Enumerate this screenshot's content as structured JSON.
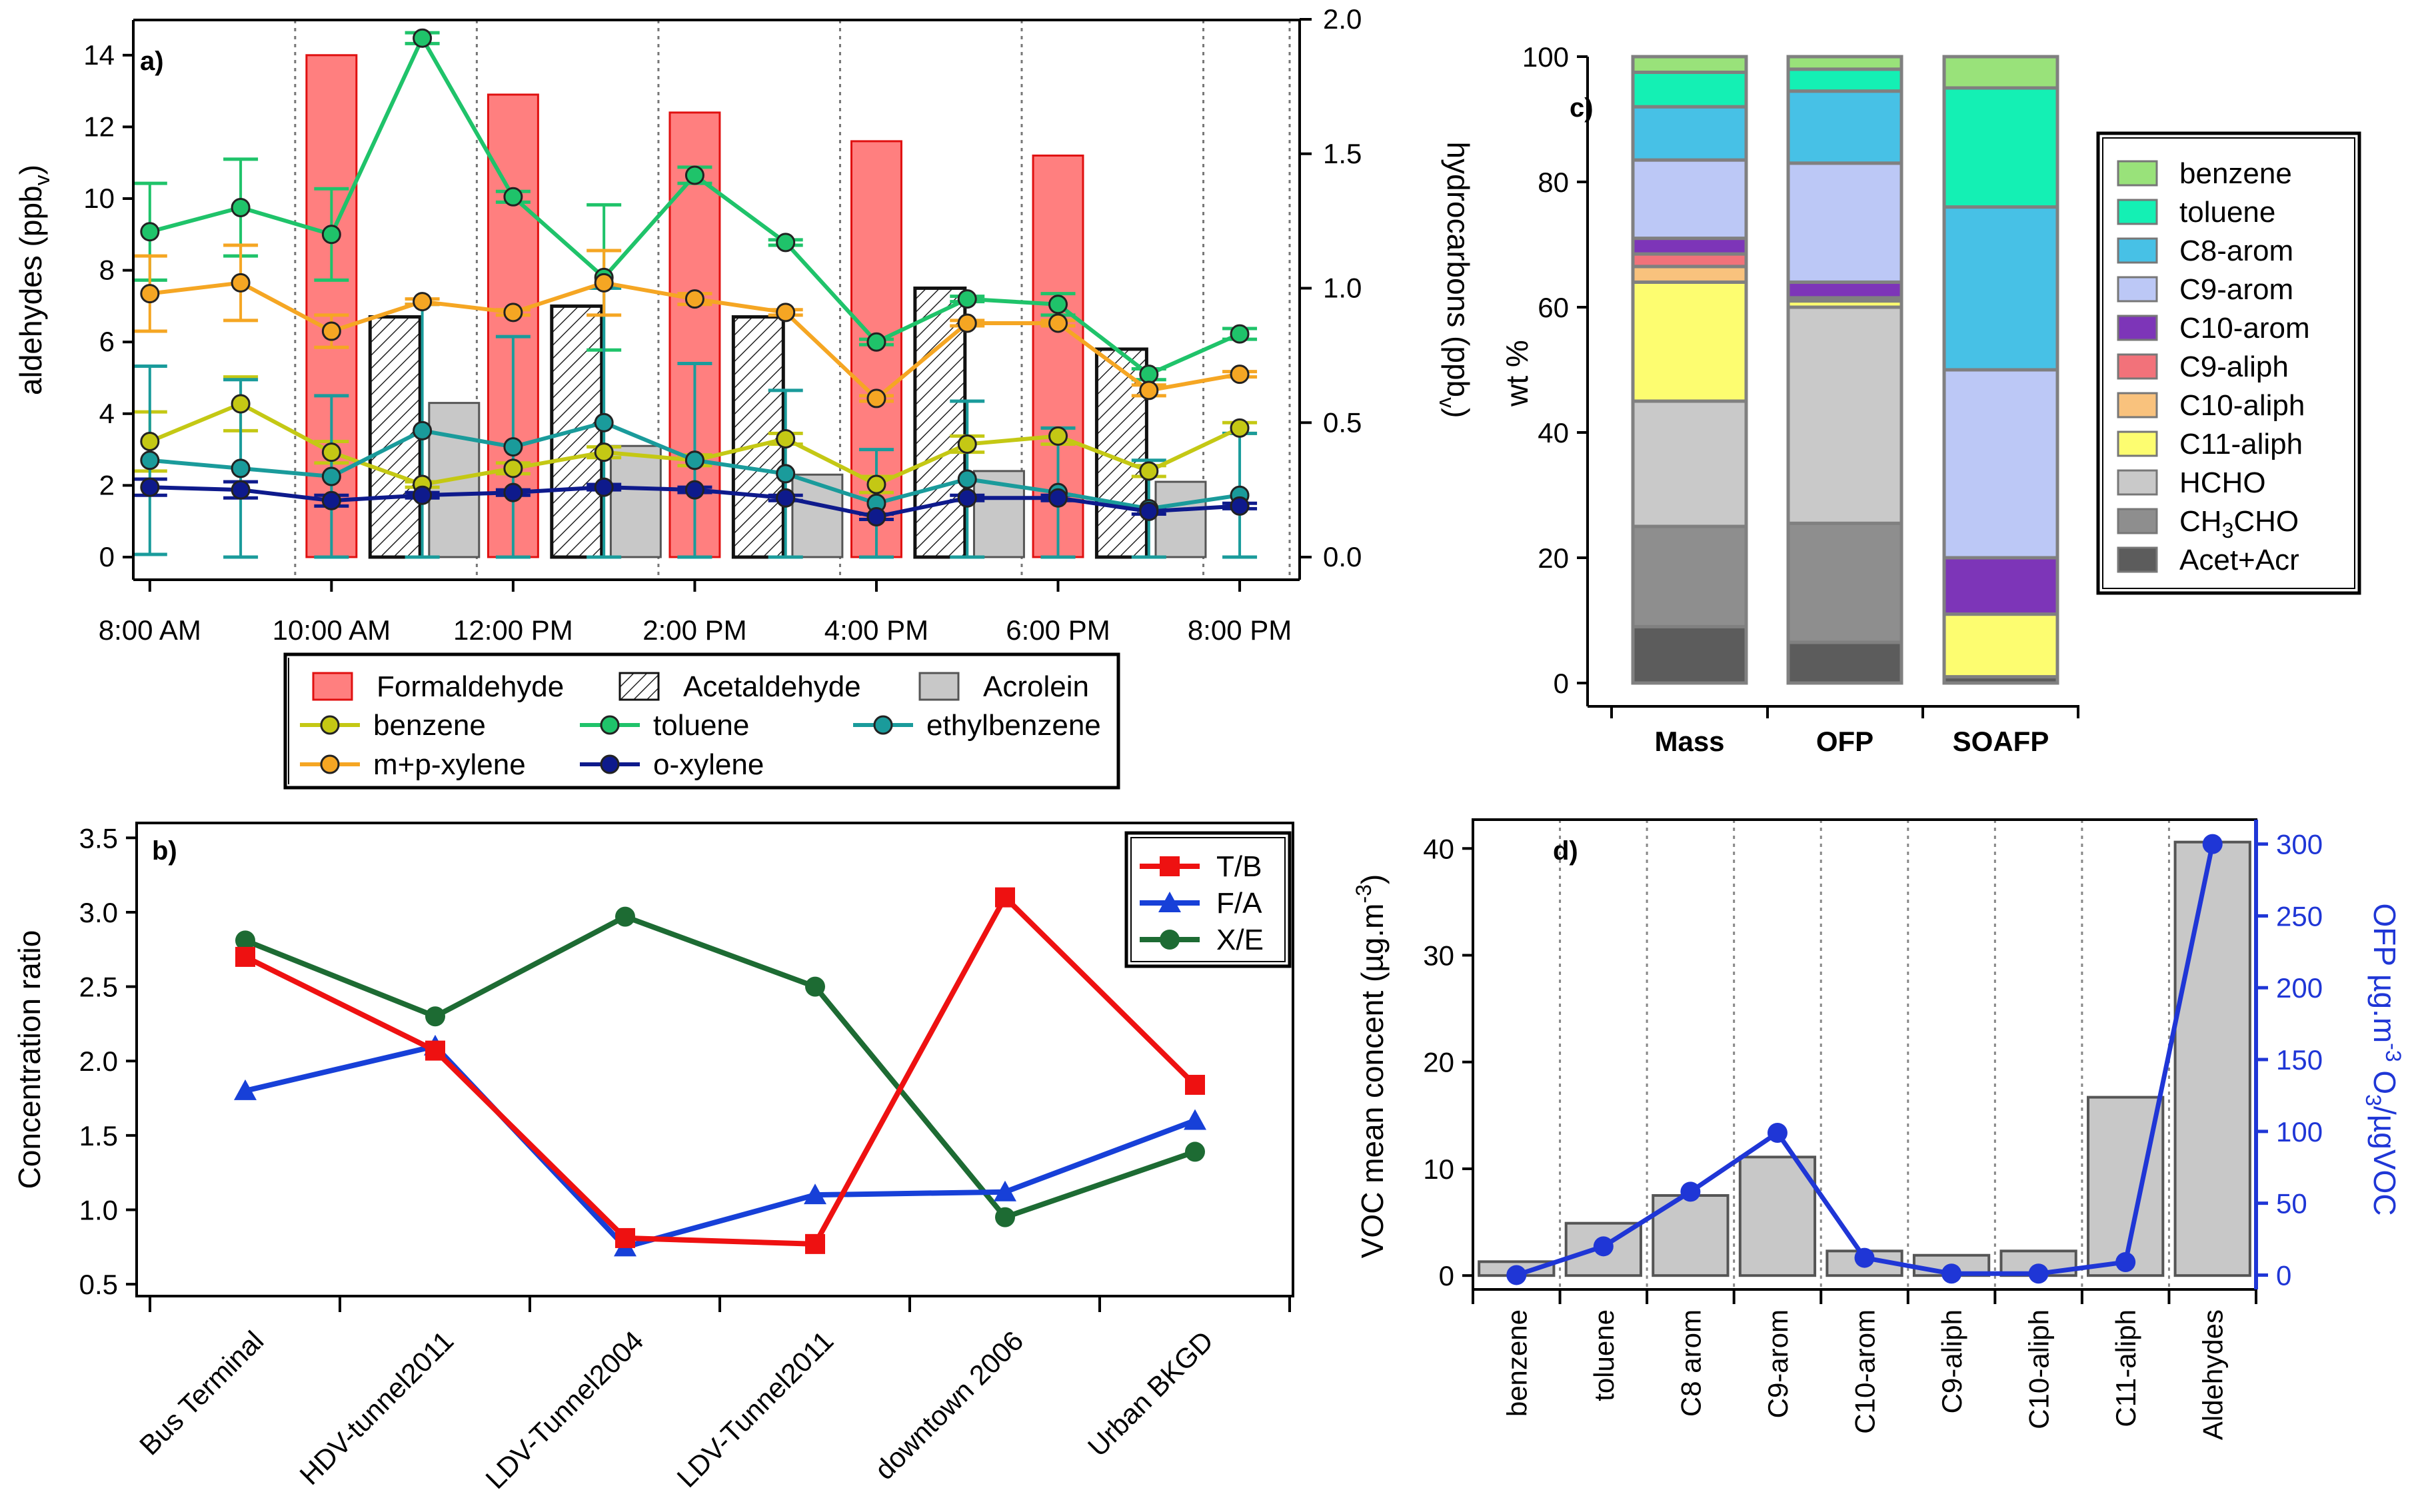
{
  "colors": {
    "formaldehyde": "#ff7f7f",
    "formaldehyde_edge": "#e01010",
    "acetaldehyde": "#ffffff",
    "acrolein": "#c8c8c8",
    "benzene": "#c4c814",
    "toluene": "#1fc36a",
    "ethylbenzene": "#1a9b9b",
    "mpxylene": "#f5a623",
    "oxylene": "#0e1a8c",
    "tb": "#ee1111",
    "fa": "#1740d8",
    "xe": "#1d6b33",
    "ofp_axis": "#1f36d6",
    "c_benzene": "#99e27a",
    "c_toluene": "#14f0b4",
    "c_c8arom": "#47c1e6",
    "c_c9arom": "#bcc8f6",
    "c_c10arom": "#7d35b8",
    "c_c9aliph": "#f2727a",
    "c_c10aliph": "#f9c27d",
    "c_c11aliph": "#fdfd70",
    "c_hcho": "#c9c9c9",
    "c_ch3cho": "#8e8e8e",
    "c_acetacr": "#5c5c5c"
  },
  "chart_data": [
    {
      "panel": "a)",
      "type": "bar+line",
      "ylabel_left": "aldehydes (ppb",
      "ylabel_left_sub": "v",
      "ylabel_right": "hydrocarbons (ppb",
      "ylabel_right_sub": "v",
      "ylim_left": [
        0,
        15
      ],
      "ylim_right": [
        0,
        2.0
      ],
      "yticks_left": [
        "0",
        "2",
        "4",
        "6",
        "8",
        "10",
        "12",
        "14"
      ],
      "yticks_right": [
        "0.0",
        "0.5",
        "1.0",
        "1.5",
        "2.0"
      ],
      "xlim_hours": [
        7.95,
        20.55
      ],
      "xticks": [
        {
          "h": 8,
          "label": "8:00 AM"
        },
        {
          "h": 10,
          "label": "10:00 AM"
        },
        {
          "h": 12,
          "label": "12:00 PM"
        },
        {
          "h": 14,
          "label": "2:00 PM"
        },
        {
          "h": 16,
          "label": "4:00 PM"
        },
        {
          "h": 18,
          "label": "6:00 PM"
        },
        {
          "h": 20,
          "label": "8:00 PM"
        }
      ],
      "dividers_hours": [
        9.6,
        11.6,
        13.6,
        15.6,
        17.6,
        19.6
      ],
      "bars": [
        {
          "name": "Formaldehyde",
          "series": [
            [
              10.0,
              14.0
            ],
            [
              12.0,
              12.9
            ],
            [
              14.0,
              12.4
            ],
            [
              16.0,
              11.6
            ],
            [
              18.0,
              11.2
            ]
          ]
        },
        {
          "name": "Acetaldehyde",
          "series": [
            [
              10.7,
              6.7
            ],
            [
              12.7,
              7.0
            ],
            [
              14.7,
              6.7
            ],
            [
              16.7,
              7.5
            ],
            [
              18.7,
              5.8
            ]
          ]
        },
        {
          "name": "Acrolein",
          "series": [
            [
              11.35,
              4.3
            ],
            [
              13.35,
              3.1
            ],
            [
              15.35,
              2.3
            ],
            [
              17.35,
              2.4
            ],
            [
              19.35,
              2.1
            ]
          ]
        }
      ],
      "bar_width_hours": 0.55,
      "line_hours": [
        8,
        9,
        10,
        11,
        12,
        13,
        14,
        15,
        16,
        17,
        18,
        19,
        20
      ],
      "lines": [
        {
          "name": "benzene",
          "values": [
            0.43,
            0.57,
            0.39,
            0.27,
            0.33,
            0.39,
            0.36,
            0.44,
            0.27,
            0.42,
            0.45,
            0.32,
            0.48
          ],
          "err": [
            0.11,
            0.1,
            0.04,
            0.01,
            0.02,
            0.02,
            0.02,
            0.02,
            0.03,
            0.03,
            0.03,
            0.02,
            0.02
          ]
        },
        {
          "name": "toluene",
          "values": [
            1.21,
            1.3,
            1.2,
            1.93,
            1.34,
            1.04,
            1.42,
            1.17,
            0.8,
            0.96,
            0.94,
            0.68,
            0.83
          ],
          "err": [
            0.18,
            0.18,
            0.17,
            0.02,
            0.02,
            0.27,
            0.03,
            0.01,
            0.01,
            0.01,
            0.04,
            0.02,
            0.02
          ]
        },
        {
          "name": "ethylbenzene",
          "values": [
            0.36,
            0.33,
            0.3,
            0.47,
            0.41,
            0.5,
            0.36,
            0.31,
            0.2,
            0.29,
            0.24,
            0.18,
            0.23
          ],
          "err": [
            0.35,
            0.33,
            0.3,
            0.47,
            0.41,
            0.5,
            0.36,
            0.31,
            0.2,
            0.29,
            0.24,
            0.18,
            0.23
          ]
        },
        {
          "name": "m+p-xylene",
          "values": [
            0.98,
            1.02,
            0.84,
            0.95,
            0.91,
            1.02,
            0.96,
            0.91,
            0.59,
            0.87,
            0.87,
            0.62,
            0.68
          ],
          "err": [
            0.14,
            0.14,
            0.06,
            0.01,
            0.01,
            0.12,
            0.02,
            0.01,
            0.01,
            0.01,
            0.01,
            0.02,
            0.01
          ]
        },
        {
          "name": "o-xylene",
          "values": [
            0.26,
            0.25,
            0.21,
            0.23,
            0.24,
            0.26,
            0.25,
            0.22,
            0.15,
            0.22,
            0.22,
            0.17,
            0.19
          ],
          "err": [
            0.03,
            0.03,
            0.02,
            0.01,
            0.01,
            0.01,
            0.01,
            0.01,
            0.01,
            0.01,
            0.01,
            0.01,
            0.01
          ]
        }
      ],
      "legend": [
        {
          "key": "formaldehyde",
          "label": "Formaldehyde",
          "kind": "bar"
        },
        {
          "key": "acetaldehyde",
          "label": "Acetaldehyde",
          "kind": "hatch"
        },
        {
          "key": "acrolein",
          "label": "Acrolein",
          "kind": "bar"
        },
        {
          "key": "benzene",
          "label": "benzene",
          "kind": "line"
        },
        {
          "key": "toluene",
          "label": "toluene",
          "kind": "line"
        },
        {
          "key": "ethylbenzene",
          "label": "ethylbenzene",
          "kind": "line"
        },
        {
          "key": "mpxylene",
          "label": "m+p-xylene",
          "kind": "line"
        },
        {
          "key": "oxylene",
          "label": "o-xylene",
          "kind": "line"
        }
      ]
    },
    {
      "panel": "b)",
      "type": "line",
      "ylabel": "Concentration ratio",
      "ylim": [
        0.42,
        3.6
      ],
      "yticks": [
        "0.5",
        "1.0",
        "1.5",
        "2.0",
        "2.5",
        "3.0",
        "3.5"
      ],
      "categories": [
        "Bus Terminal",
        "HDV-tunnel2011",
        "LDV-Tunnel2004",
        "LDV-Tunnel2011",
        "downtown 2006",
        "Urban BKGD"
      ],
      "series": [
        {
          "name": "T/B",
          "values": [
            2.7,
            2.07,
            0.81,
            0.77,
            3.1,
            1.84
          ]
        },
        {
          "name": "F/A",
          "values": [
            1.8,
            2.1,
            0.75,
            1.1,
            1.12,
            1.6
          ]
        },
        {
          "name": "X/E",
          "values": [
            2.81,
            2.3,
            2.97,
            2.5,
            0.95,
            1.39
          ]
        }
      ]
    },
    {
      "panel": "c)",
      "type": "stacked-bar",
      "ylabel": "wt %",
      "ylim": [
        0,
        100
      ],
      "yticks": [
        "0",
        "20",
        "40",
        "60",
        "80",
        "100"
      ],
      "categories": [
        "Mass",
        "OFP",
        "SOAFP"
      ],
      "stack_order": [
        "Acet+Acr",
        "CH3CHO",
        "HCHO",
        "C11-aliph",
        "C10-aliph",
        "C9-aliph",
        "C10-arom",
        "C9-arom",
        "C8-arom",
        "toluene",
        "benzene"
      ],
      "values": {
        "Mass": [
          9.0,
          16.0,
          20.0,
          19.0,
          2.5,
          2.0,
          2.5,
          12.5,
          8.5,
          5.5,
          2.5
        ],
        "OFP": [
          6.5,
          19.0,
          34.5,
          1.0,
          0.5,
          0.0,
          2.5,
          19.0,
          11.5,
          3.5,
          2.0
        ],
        "SOAFP": [
          1.0,
          0.0,
          0.0,
          10.0,
          0.0,
          0.0,
          9.0,
          30.0,
          26.0,
          19.0,
          5.0
        ]
      },
      "legend": [
        {
          "key": "c_benzene",
          "label": "benzene"
        },
        {
          "key": "c_toluene",
          "label": "toluene"
        },
        {
          "key": "c_c8arom",
          "label": "C8-arom"
        },
        {
          "key": "c_c9arom",
          "label": "C9-arom"
        },
        {
          "key": "c_c10arom",
          "label": "C10-arom"
        },
        {
          "key": "c_c9aliph",
          "label": "C9-aliph"
        },
        {
          "key": "c_c10aliph",
          "label": "C10-aliph"
        },
        {
          "key": "c_c11aliph",
          "label": "C11-aliph"
        },
        {
          "key": "c_hcho",
          "label": "HCHO"
        },
        {
          "key": "c_ch3cho",
          "label": "CH3CHO"
        },
        {
          "key": "c_acetacr",
          "label": "Acet+Acr"
        }
      ]
    },
    {
      "panel": "d)",
      "type": "bar+line",
      "ylabel_left": "VOC mean concent (µg.m",
      "ylabel_left_sup": "-3",
      "ylabel_right": "OFP µg.m",
      "ylabel_right_sup": "-3",
      "ylabel_right_tail": " O",
      "ylabel_right_sub": "3",
      "ylabel_right_end": "/µgVOC",
      "ylim_left": [
        -1.3,
        42.7
      ],
      "ylim_right": [
        -10,
        317
      ],
      "yticks_left": [
        "0",
        "10",
        "20",
        "30",
        "40"
      ],
      "yticks_right": [
        "0",
        "50",
        "100",
        "150",
        "200",
        "250",
        "300"
      ],
      "categories": [
        "benzene",
        "toluene",
        "C8 arom",
        "C9-arom",
        "C10-arom",
        "C9-aliph",
        "C10-aliph",
        "C11-aliph",
        "Aldehydes"
      ],
      "bars": [
        1.3,
        4.9,
        7.5,
        11.1,
        2.3,
        1.9,
        2.3,
        16.7,
        40.6
      ],
      "line": [
        0,
        20,
        58,
        99,
        12,
        1,
        1,
        9,
        300
      ]
    }
  ]
}
